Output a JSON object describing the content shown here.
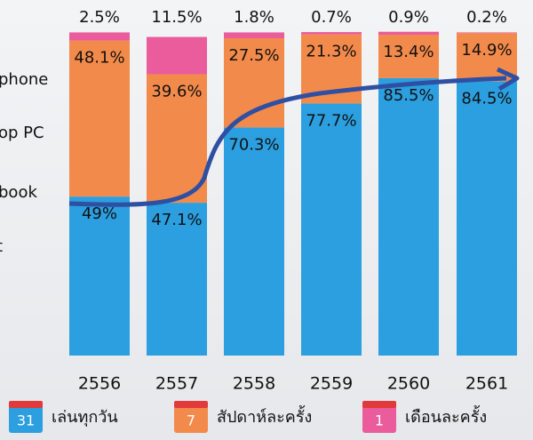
{
  "chart_data": {
    "type": "stacked_bar",
    "categories": [
      "2556",
      "2557",
      "2558",
      "2559",
      "2560",
      "2561"
    ],
    "series": [
      {
        "name": "เล่นทุกวัน",
        "icon": "31",
        "color": "#2b9fdf",
        "values": [
          49,
          47.1,
          70.3,
          77.7,
          85.5,
          84.5
        ],
        "value_labels": [
          "49%",
          "47.1%",
          "70.3%",
          "77.7%",
          "85.5%",
          "84.5%"
        ]
      },
      {
        "name": "สัปดาห์ละครั้ง",
        "icon": "7",
        "color": "#f28a4b",
        "values": [
          48.1,
          39.6,
          27.5,
          21.3,
          13.4,
          14.9
        ],
        "value_labels": [
          "48.1%",
          "39.6%",
          "27.5%",
          "21.3%",
          "13.4%",
          "14.9%"
        ]
      },
      {
        "name": "เดือนละครั้ง",
        "icon": "1",
        "color": "#ea5c9c",
        "values": [
          2.5,
          11.5,
          1.8,
          0.7,
          0.9,
          0.2
        ],
        "value_labels": [
          "2.5%",
          "11.5%",
          "1.8%",
          "0.7%",
          "0.9%",
          "0.2%"
        ]
      }
    ],
    "ylim": [
      0,
      100
    ],
    "side_labels": [
      "phone",
      "op PC",
      "book",
      "t"
    ]
  }
}
